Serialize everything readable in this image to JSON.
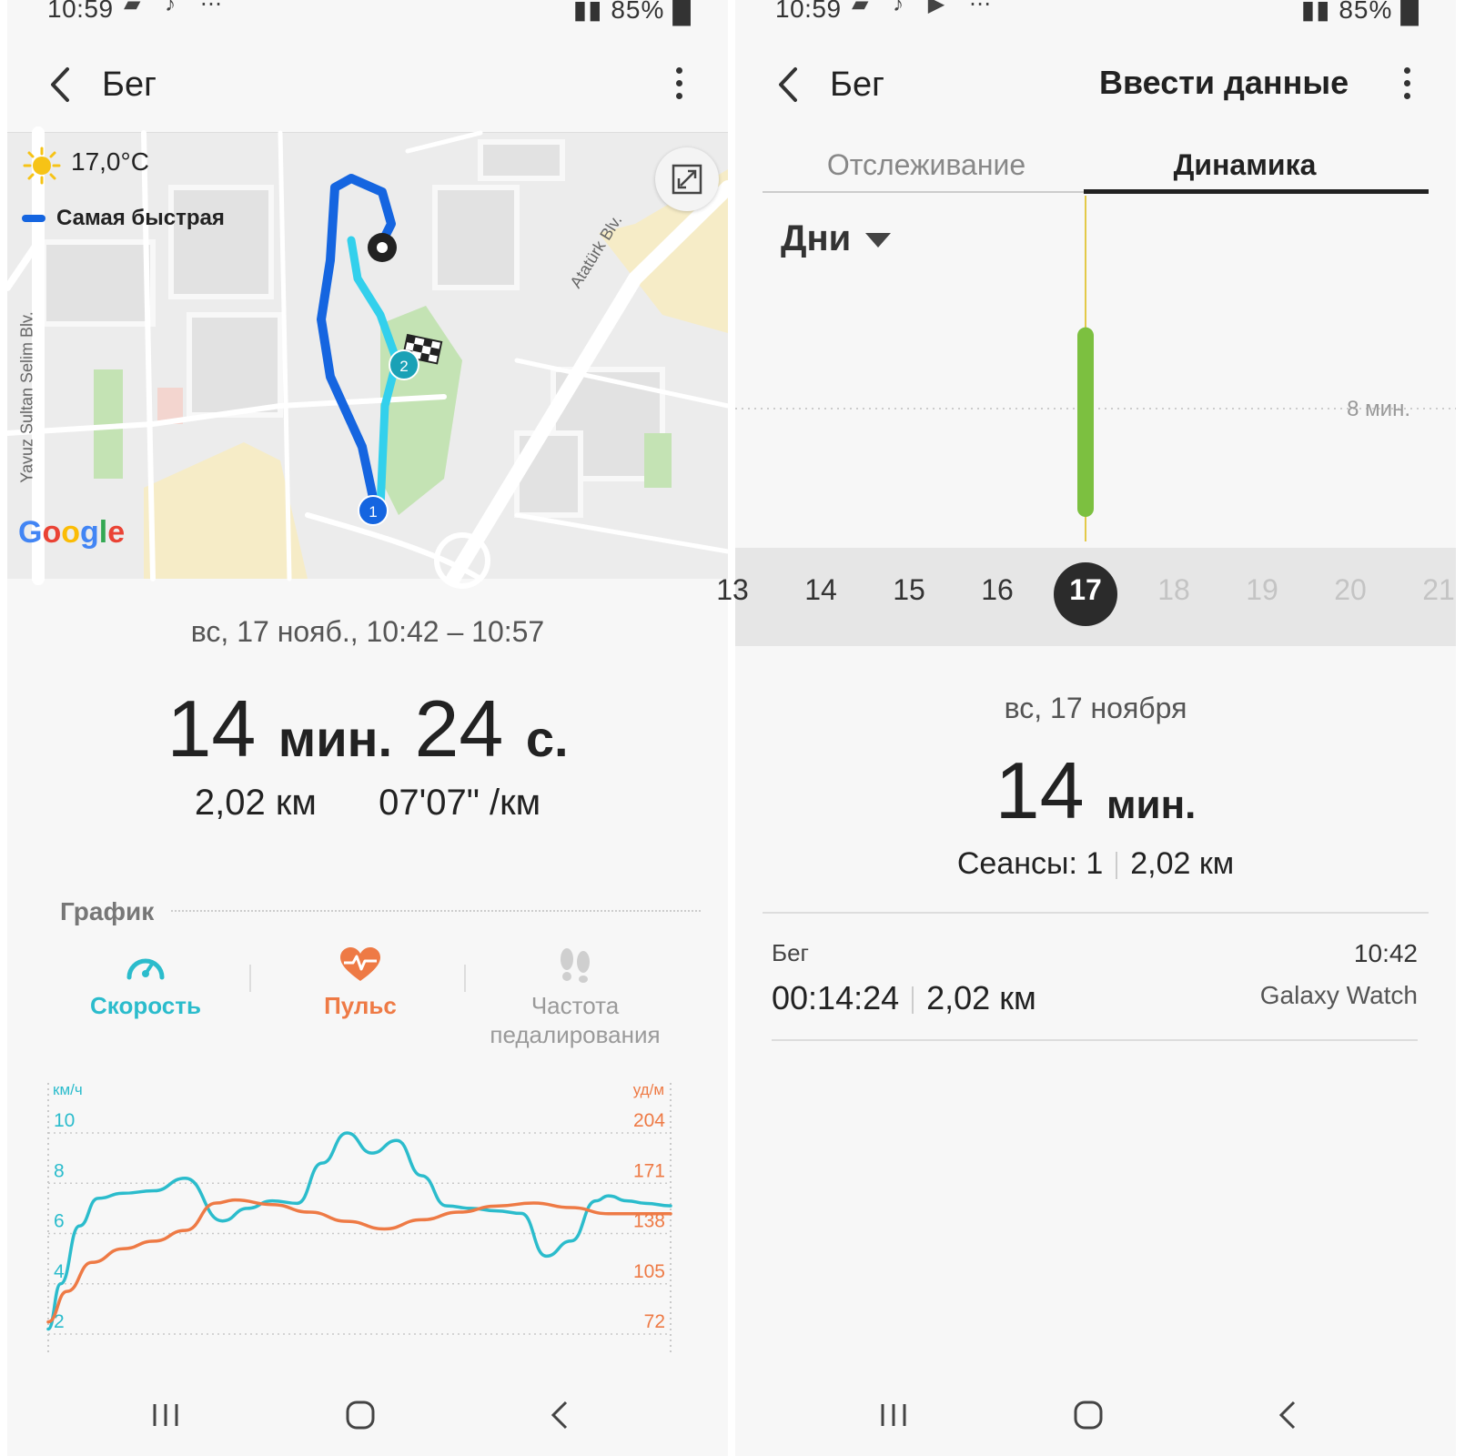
{
  "left": {
    "status": {
      "time": "10:59",
      "battery": "85%"
    },
    "appbar": {
      "title": "Бег"
    },
    "map": {
      "weather": "17,0°C",
      "legend_fastest": "Самая быстрая",
      "street_1": "Yavuz Sultan Selim Blv.",
      "street_2": "Atatürk Blv.",
      "marker_start": "1",
      "marker_lap": "2",
      "google": {
        "g1": "G",
        "o1": "o",
        "o2": "o",
        "g2": "g",
        "l": "l",
        "e": "e"
      }
    },
    "session": {
      "date": "вс, 17 нояб., 10:42 – 10:57",
      "min_value": "14",
      "min_unit": "мин.",
      "sec_value": "24",
      "sec_unit": "с.",
      "distance": "2,02 км",
      "pace": "07'07\" /км"
    },
    "graph": {
      "title": "График",
      "tabs": [
        {
          "label": "Скорость",
          "icon": "speedometer-icon"
        },
        {
          "label": "Пульс",
          "icon": "heart-pulse-icon"
        },
        {
          "label_line1": "Частота",
          "label_line2": "педалирования",
          "icon": "footprints-icon"
        }
      ]
    },
    "chart_data": {
      "type": "line",
      "left_axis_unit": "км/ч",
      "right_axis_unit": "уд/м",
      "left_ticks": [
        "10",
        "8",
        "6",
        "4",
        "2"
      ],
      "right_ticks": [
        "204",
        "171",
        "138",
        "105",
        "72"
      ],
      "left_ylim": [
        2,
        10
      ],
      "right_ylim": [
        72,
        204
      ],
      "series": [
        {
          "axis": "left",
          "color": "#2bbccc",
          "x": [
            0.0,
            0.02,
            0.05,
            0.08,
            0.12,
            0.17,
            0.22,
            0.28,
            0.32,
            0.36,
            0.4,
            0.44,
            0.48,
            0.52,
            0.56,
            0.6,
            0.64,
            0.68,
            0.72,
            0.76,
            0.8,
            0.84,
            0.88,
            0.9,
            0.93,
            0.96,
            1.0
          ],
          "values": [
            2.2,
            4.0,
            6.3,
            7.4,
            7.6,
            7.7,
            8.2,
            6.5,
            7.0,
            7.3,
            7.2,
            8.8,
            10.0,
            9.2,
            9.7,
            8.3,
            7.1,
            7.0,
            6.9,
            6.8,
            5.1,
            5.7,
            7.3,
            7.5,
            7.3,
            7.2,
            7.1
          ]
        },
        {
          "axis": "right",
          "color": "#ee7a45",
          "x": [
            0.0,
            0.03,
            0.07,
            0.12,
            0.17,
            0.22,
            0.27,
            0.3,
            0.36,
            0.42,
            0.48,
            0.54,
            0.6,
            0.66,
            0.72,
            0.78,
            0.84,
            0.9,
            1.0
          ],
          "values": [
            80,
            100,
            119,
            128,
            133,
            140,
            158,
            160,
            157,
            152,
            146,
            141,
            147,
            152,
            156,
            158,
            155,
            151,
            151
          ]
        }
      ]
    }
  },
  "right": {
    "status": {
      "time": "10:59",
      "battery": "85%"
    },
    "appbar": {
      "title": "Бег",
      "action": "Ввести данные"
    },
    "tabs": {
      "tracking": "Отслеживание",
      "dynamics": "Динамика"
    },
    "period": "Дни",
    "bar_chart": {
      "type": "bar",
      "ref_label": "8 мин.",
      "ref_value": 8,
      "ymax": 17,
      "bar_value": 14,
      "bar_color": "#7cc040"
    },
    "days": [
      {
        "label": "13",
        "state": "normal"
      },
      {
        "label": "14",
        "state": "normal"
      },
      {
        "label": "15",
        "state": "normal"
      },
      {
        "label": "16",
        "state": "normal"
      },
      {
        "label": "17",
        "state": "selected"
      },
      {
        "label": "18",
        "state": "future"
      },
      {
        "label": "19",
        "state": "future"
      },
      {
        "label": "20",
        "state": "future"
      },
      {
        "label": "21",
        "state": "future"
      }
    ],
    "summary": {
      "date": "вс, 17 ноября",
      "value": "14",
      "unit": "мин.",
      "sessions": "Сеансы: 1",
      "distance": "2,02 км"
    },
    "record": {
      "type": "Бег",
      "duration": "00:14:24",
      "distance": "2,02 км",
      "time": "10:42",
      "device": "Galaxy Watch"
    }
  },
  "colors": {
    "speed": "#2bbccc",
    "pulse": "#ee7a45",
    "fastest": "#1565e0",
    "route": "#33d0ec",
    "bar": "#7cc040"
  }
}
